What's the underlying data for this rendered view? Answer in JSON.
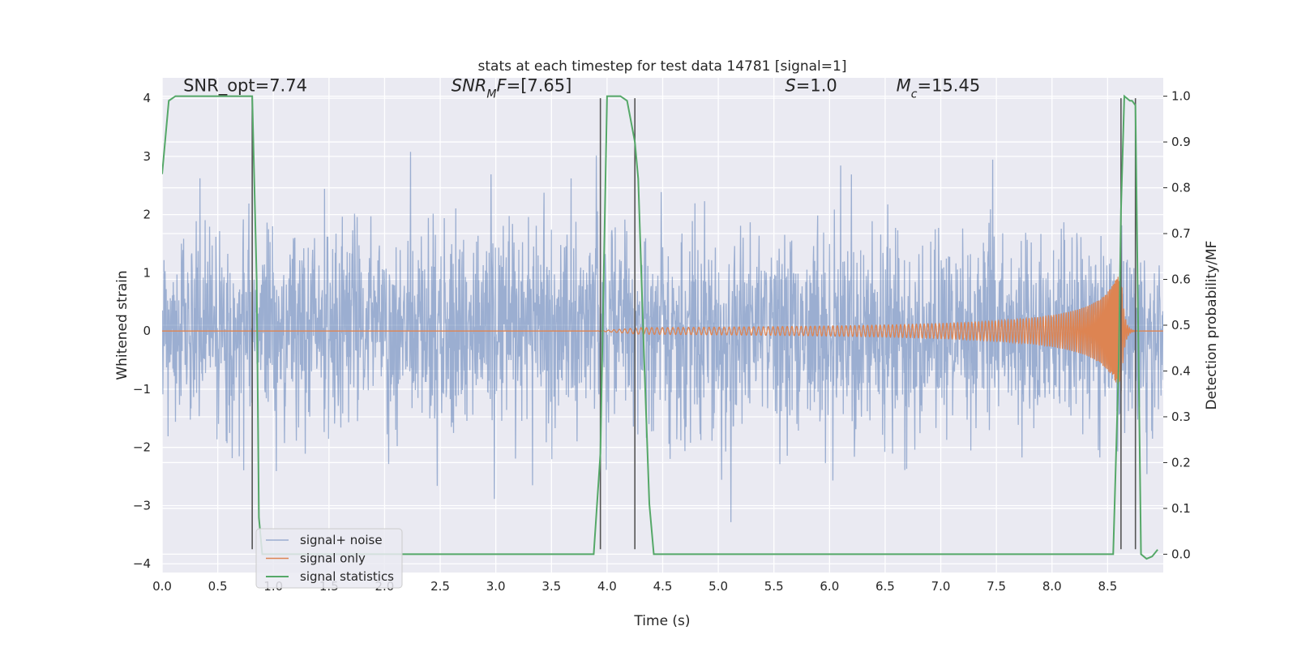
{
  "chart_data": {
    "type": "line",
    "title": "stats at each timestep for test data 14781 [signal=1]",
    "xlabel": "Time (s)",
    "ylabel_left": "Whitened strain",
    "ylabel_right": "Detection probability/MF",
    "xlim": [
      0,
      9
    ],
    "ylim_left": [
      -4.15,
      4.35
    ],
    "ylim_right": [
      -0.04,
      1.04
    ],
    "x_ticks": [
      "0.0",
      "0.5",
      "1.0",
      "1.5",
      "2.0",
      "2.5",
      "3.0",
      "3.5",
      "4.0",
      "4.5",
      "5.0",
      "5.5",
      "6.0",
      "6.5",
      "7.0",
      "7.5",
      "8.0",
      "8.5"
    ],
    "y_ticks_left": [
      "4",
      "3",
      "2",
      "1",
      "0",
      "−1",
      "−2",
      "−3",
      "−4"
    ],
    "y_ticks_right": [
      "1.0",
      "0.9",
      "0.8",
      "0.7",
      "0.6",
      "0.5",
      "0.4",
      "0.3",
      "0.2",
      "0.1",
      "0.0"
    ],
    "grid": true,
    "legend_placement": "lower-left",
    "annotations": [
      {
        "text": "SNR_opt=7.74",
        "x": 0.19,
        "y": 4.12
      },
      {
        "text_parts": [
          {
            "t": "SNR",
            "italic": true
          },
          {
            "t": "M",
            "italic": true,
            "sub": true
          },
          {
            "t": "F",
            "italic": true
          },
          {
            "t": "=[7.65]"
          }
        ],
        "x": 2.6,
        "y": 4.12
      },
      {
        "text_parts": [
          {
            "t": "S",
            "italic": true
          },
          {
            "t": "=1.0"
          }
        ],
        "x": 5.6,
        "y": 4.12
      },
      {
        "text_parts": [
          {
            "t": "M",
            "italic": true
          },
          {
            "t": "c",
            "italic": true,
            "sub": true
          },
          {
            "t": "=15.45"
          }
        ],
        "x": 6.6,
        "y": 4.12
      }
    ],
    "vertical_lines": [
      {
        "x": 0.81,
        "y_range": [
          -3.75,
          4.0
        ]
      },
      {
        "x": 3.94,
        "y_range": [
          -3.75,
          4.0
        ]
      },
      {
        "x": 4.25,
        "y_range": [
          -3.75,
          4.0
        ]
      },
      {
        "x": 8.62,
        "y_range": [
          -3.75,
          4.0
        ]
      },
      {
        "x": 8.75,
        "y_range": [
          -3.75,
          4.0
        ]
      }
    ],
    "series": [
      {
        "name": "signal+ noise",
        "axis": "left",
        "color": "#4c72b0",
        "opacity": 0.5,
        "kind": "noise",
        "noise_sigma": 0.85,
        "noise_clip": [
          -3.75,
          3.75
        ],
        "sample_rate": 300,
        "seed": 14781
      },
      {
        "name": "signal only",
        "axis": "left",
        "color": "#dd8452",
        "kind": "chirp",
        "chirp_start": 3.9,
        "merger_time": 8.62,
        "merger_amplitude": 1.1,
        "ringdown_end": 8.75
      },
      {
        "name": "signal statistics",
        "axis": "right",
        "color": "#55a868",
        "x": [
          0.0,
          0.06,
          0.12,
          0.2,
          0.3,
          0.45,
          0.6,
          0.7,
          0.78,
          0.81,
          0.85,
          0.87,
          0.9,
          1.0,
          1.5,
          2.0,
          2.5,
          3.0,
          3.5,
          3.88,
          3.94,
          4.0,
          4.06,
          4.12,
          4.18,
          4.25,
          4.28,
          4.33,
          4.38,
          4.42,
          4.45,
          4.5,
          5.0,
          5.5,
          6.0,
          6.5,
          7.0,
          7.5,
          8.0,
          8.5,
          8.55,
          8.6,
          8.62,
          8.65,
          8.7,
          8.72,
          8.75,
          8.8,
          8.85,
          8.9,
          8.95
        ],
        "values": [
          0.83,
          0.99,
          1.0,
          1.0,
          1.0,
          1.0,
          1.0,
          1.0,
          1.0,
          1.0,
          0.6,
          0.08,
          0.0,
          0.0,
          0.0,
          0.0,
          0.0,
          0.0,
          0.0,
          0.0,
          0.22,
          1.0,
          1.0,
          1.0,
          0.99,
          0.9,
          0.82,
          0.45,
          0.11,
          0.0,
          0.0,
          0.0,
          0.0,
          0.0,
          0.0,
          0.0,
          0.0,
          0.0,
          0.0,
          0.0,
          0.0,
          0.42,
          0.75,
          1.0,
          0.99,
          0.99,
          0.98,
          0.0,
          -0.01,
          -0.005,
          0.01
        ]
      }
    ]
  }
}
